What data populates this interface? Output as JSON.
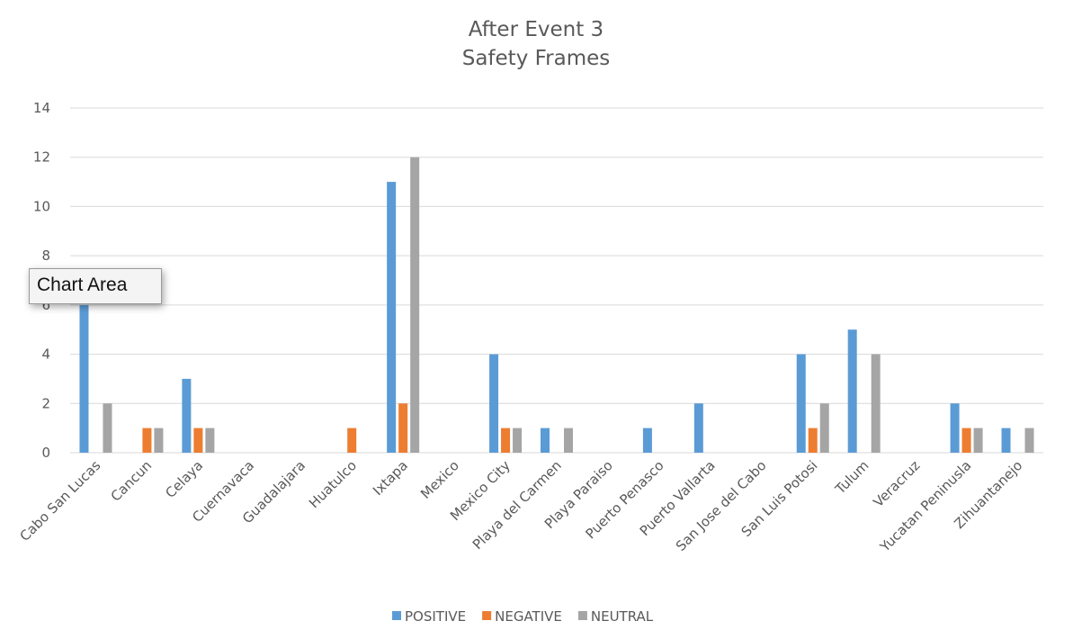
{
  "chart_data": {
    "type": "bar",
    "title": [
      "After Event 3",
      "Safety Frames"
    ],
    "categories": [
      "Cabo San Lucas",
      "Cancun",
      "Celaya",
      "Cuernavaca",
      "Guadalajara",
      "Huatulco",
      "Ixtapa",
      "Mexico",
      "Mexico City",
      "Playa del Carmen",
      "Playa Paraiso",
      "Puerto Penasco",
      "Puerto Vallarta",
      "San Jose del Cabo",
      "San Luis Potosi",
      "Tulum",
      "Veracruz",
      "Yucatan Peninusla",
      "Zihuantanejo"
    ],
    "series": [
      {
        "name": "POSITIVE",
        "color": "#5b9bd5",
        "values": [
          6,
          0,
          3,
          0,
          0,
          0,
          11,
          0,
          4,
          1,
          0,
          1,
          2,
          0,
          4,
          5,
          0,
          2,
          1
        ]
      },
      {
        "name": "NEGATIVE",
        "color": "#ed7d31",
        "values": [
          0,
          1,
          1,
          0,
          0,
          1,
          2,
          0,
          1,
          0,
          0,
          0,
          0,
          0,
          1,
          0,
          0,
          1,
          0
        ]
      },
      {
        "name": "NEUTRAL",
        "color": "#a5a5a5",
        "values": [
          2,
          1,
          1,
          0,
          0,
          0,
          12,
          0,
          1,
          1,
          0,
          0,
          0,
          0,
          2,
          4,
          0,
          1,
          1
        ]
      }
    ],
    "yticks": [
      0,
      2,
      4,
      6,
      8,
      10,
      12,
      14
    ],
    "ylim": [
      0,
      14
    ],
    "grid": true,
    "legend_position": "bottom"
  },
  "tooltip": {
    "label": "Chart Area"
  }
}
